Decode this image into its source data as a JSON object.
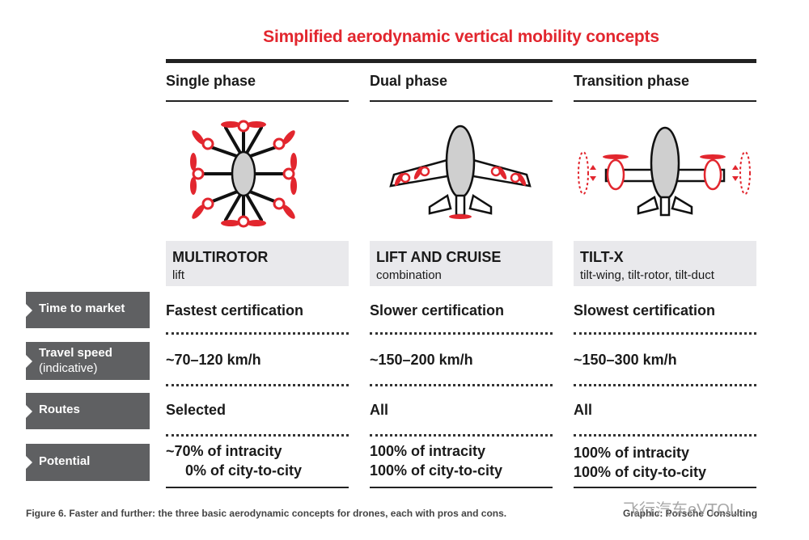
{
  "title": "Simplified aerodynamic vertical mobility concepts",
  "row_labels": [
    {
      "line1": "Time to market",
      "line2": ""
    },
    {
      "line1": "Travel speed",
      "line2": "(indicative)"
    },
    {
      "line1": "Routes",
      "line2": ""
    },
    {
      "line1": "Potential",
      "line2": ""
    }
  ],
  "columns": [
    {
      "header": "Single phase",
      "illustration": "multirotor-drone-icon",
      "name": "MULTIROTOR",
      "subtitle": "lift",
      "time_to_market": "Fastest certification",
      "travel_speed": "~70–120 km/h",
      "routes": "Selected",
      "potential_1": "~70% of intracity",
      "potential_2": "0% of city-to-city"
    },
    {
      "header": "Dual phase",
      "illustration": "lift-and-cruise-aircraft-icon",
      "name": "LIFT AND CRUISE",
      "subtitle": "combination",
      "time_to_market": "Slower certification",
      "travel_speed": "~150–200 km/h",
      "routes": "All",
      "potential_1": "100% of intracity",
      "potential_2": "100% of city-to-city"
    },
    {
      "header": "Transition phase",
      "illustration": "tilt-rotor-aircraft-icon",
      "name": "TILT-X",
      "subtitle": "tilt-wing, tilt-rotor, tilt-duct",
      "time_to_market": "Slowest certification",
      "travel_speed": "~150–300 km/h",
      "routes": "All",
      "potential_1": "100% of intracity",
      "potential_2": "100% of city-to-city"
    }
  ],
  "caption": "Figure 6. Faster and further: the three basic aerodynamic concepts for drones, each with pros and cons.",
  "credit": "Graphic: Porsche Consulting",
  "watermark": "飞行汽车eVTOL",
  "colors": {
    "accent": "#e2262e",
    "label_bg": "#5f6062",
    "name_bg": "#e9e9ec"
  }
}
